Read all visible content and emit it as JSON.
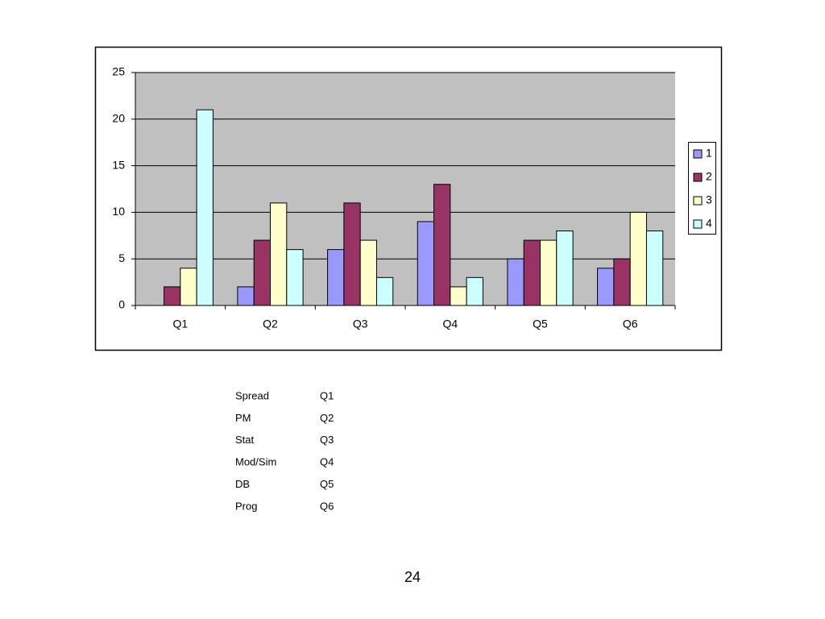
{
  "chart_data": {
    "type": "bar",
    "categories": [
      "Q1",
      "Q2",
      "Q3",
      "Q4",
      "Q5",
      "Q6"
    ],
    "series": [
      {
        "name": "1",
        "color": "#9999ff",
        "values": [
          0,
          2,
          6,
          9,
          5,
          4
        ]
      },
      {
        "name": "2",
        "color": "#993366",
        "values": [
          2,
          7,
          11,
          13,
          7,
          5
        ]
      },
      {
        "name": "3",
        "color": "#ffffcc",
        "values": [
          4,
          11,
          7,
          2,
          7,
          10
        ]
      },
      {
        "name": "4",
        "color": "#ccffff",
        "values": [
          21,
          6,
          3,
          3,
          8,
          8
        ]
      }
    ],
    "ylim": [
      0,
      25
    ],
    "yticks": [
      0,
      5,
      10,
      15,
      20,
      25
    ],
    "grid": true,
    "legend": "right"
  },
  "table": {
    "rows": [
      [
        "Spread",
        "Q1"
      ],
      [
        "PM",
        "Q2"
      ],
      [
        "Stat",
        "Q3"
      ],
      [
        "Mod/Sim",
        "Q4"
      ],
      [
        "DB",
        "Q5"
      ],
      [
        "Prog",
        "Q6"
      ]
    ]
  },
  "page_number": "24"
}
